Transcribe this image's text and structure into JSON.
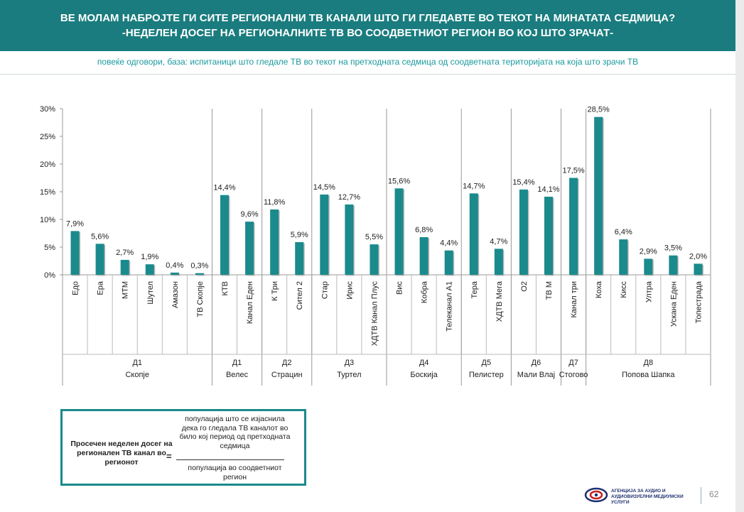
{
  "header": {
    "title_line1": "ВЕ МОЛАМ НАБРОЈТЕ ГИ СИТЕ РЕГИОНАЛНИ ТВ КАНАЛИ ШТО ГИ ГЛЕДАВТЕ ВО ТЕКОТ НА МИНАТАТА СЕДМИЦА?",
    "title_line2": "-НЕДЕЛЕН ДОСЕГ НА РЕГИОНАЛНИТЕ ТВ ВО СООДВЕТНИОТ РЕГИОН ВО КОЈ ШТО ЗРАЧАТ-",
    "accent_color": "#1a7c7e"
  },
  "subtitle": "повеќе одговори, база: испитаници што гледале ТВ во текот на претходната седмица од соодветната територијата на која што зрачи ТВ",
  "chart_data": {
    "type": "bar",
    "ylim": [
      0,
      30
    ],
    "yticks": [
      "0%",
      "5%",
      "10%",
      "15%",
      "20%",
      "25%",
      "30%"
    ],
    "bar_color": "#1a8a8d",
    "grid": false,
    "categories": [
      "Едо",
      "Ера",
      "МТМ",
      "Шутел",
      "Амазон",
      "ТВ Скопје",
      "КТВ",
      "Канал Еден",
      "К Три",
      "Сител 2",
      "Стар",
      "Ирис",
      "ХДТВ Канал Плус",
      "Вис",
      "Кобра",
      "Телеканал А1",
      "Тера",
      "ХДТВ Мега",
      "О2",
      "ТВ М",
      "Канал три",
      "Коха",
      "Кисс",
      "Ултра",
      "Ускана Еден",
      "Топестрада"
    ],
    "values": [
      7.9,
      5.6,
      2.7,
      1.9,
      0.4,
      0.3,
      14.4,
      9.6,
      11.8,
      5.9,
      14.5,
      12.7,
      5.5,
      15.6,
      6.8,
      4.4,
      14.7,
      4.7,
      15.4,
      14.1,
      17.5,
      28.5,
      6.4,
      2.9,
      3.5,
      2.0
    ],
    "value_labels": [
      "7,9%",
      "5,6%",
      "2,7%",
      "1,9%",
      "0,4%",
      "0,3%",
      "14,4%",
      "9,6%",
      "11,8%",
      "5,9%",
      "14,5%",
      "12,7%",
      "5,5%",
      "15,6%",
      "6,8%",
      "4,4%",
      "14,7%",
      "4,7%",
      "15,4%",
      "14,1%",
      "17,5%",
      "28,5%",
      "6,4%",
      "2,9%",
      "3,5%",
      "2,0%"
    ],
    "groups": [
      {
        "code": "Д1",
        "name": "Скопје",
        "count": 6
      },
      {
        "code": "Д1",
        "name": "Велес",
        "count": 2
      },
      {
        "code": "Д2",
        "name": "Страцин",
        "count": 2
      },
      {
        "code": "Д3",
        "name": "Туртел",
        "count": 3
      },
      {
        "code": "Д4",
        "name": "Боскија",
        "count": 3
      },
      {
        "code": "Д5",
        "name": "Пелистер",
        "count": 2
      },
      {
        "code": "Д6",
        "name": "Мали Влај",
        "count": 2
      },
      {
        "code": "Д7",
        "name": "Стогово",
        "count": 1
      },
      {
        "code": "Д8",
        "name": "Попова Шапка",
        "count": 5
      }
    ]
  },
  "formula": {
    "left_label": "Просечен неделен досег на регионален ТВ канал во регионот",
    "equals": "=",
    "numerator": "популација што се изјаснила дека го гледала ТВ каналот во било кој период од претходната седмица",
    "denominator": "популација во соодветниот регион"
  },
  "footer": {
    "logo_text": "АГЕНЦИЈА ЗА АУДИО И АУДИОВИЗУЕЛНИ МЕДИУМСКИ УСЛУГИ",
    "page_number": "62"
  }
}
